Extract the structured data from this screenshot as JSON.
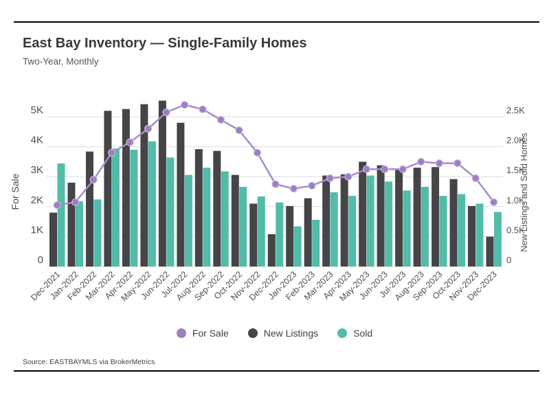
{
  "header": {
    "title": "East Bay Inventory — Single-Family Homes",
    "subtitle": "Two-Year, Monthly"
  },
  "source": "Source:  EASTBAYMLS via BrokerMetrics",
  "colors": {
    "for_sale": "#9d7fc1",
    "for_sale_line": "#a38dc7",
    "for_sale_dot_edge": "#c9b8de",
    "new_listings": "#454547",
    "sold": "#53bca9",
    "gridline": "#dcdcdc",
    "tick_text": "#4d4d4d"
  },
  "legend": [
    {
      "label": "For Sale",
      "color": "#9d7fc1"
    },
    {
      "label": "New Listings",
      "color": "#454547"
    },
    {
      "label": "Sold",
      "color": "#53bca9"
    }
  ],
  "chart_data": {
    "type": "combo-bar-line",
    "grid": true,
    "categories": [
      "Dec-2021",
      "Jan-2022",
      "Feb-2022",
      "Mar-2022",
      "Apr-2022",
      "May-2022",
      "Jun-2022",
      "Jul-2022",
      "Aug-2022",
      "Sep-2022",
      "Oct-2022",
      "Nov-2022",
      "Dec-2022",
      "Jan-2023",
      "Feb-2023",
      "Mar-2023",
      "Apr-2023",
      "May-2023",
      "Jun-2023",
      "Jul-2023",
      "Aug-2023",
      "Sep-2023",
      "Oct-2023",
      "Nov-2023",
      "Dec-2023"
    ],
    "series": [
      {
        "name": "For Sale",
        "type": "line",
        "axis": "left",
        "values": [
          2050,
          2150,
          2900,
          3800,
          4150,
          4600,
          5150,
          5400,
          5250,
          4900,
          4550,
          3800,
          2750,
          2600,
          2700,
          2950,
          3000,
          3250,
          3250,
          3250,
          3500,
          3450,
          3450,
          2950,
          2150
        ]
      },
      {
        "name": "New Listings",
        "type": "bar",
        "axis": "right",
        "values": [
          900,
          1400,
          1920,
          2600,
          2630,
          2710,
          2770,
          2400,
          1960,
          1930,
          1530,
          1050,
          540,
          1010,
          1140,
          1520,
          1540,
          1750,
          1690,
          1610,
          1650,
          1660,
          1460,
          1010,
          500
        ]
      },
      {
        "name": "Sold",
        "type": "bar",
        "axis": "right",
        "values": [
          1720,
          1090,
          1120,
          1970,
          1950,
          2090,
          1820,
          1530,
          1650,
          1590,
          1330,
          1170,
          1070,
          670,
          780,
          1240,
          1180,
          1520,
          1420,
          1270,
          1330,
          1180,
          1210,
          1050,
          910
        ]
      }
    ],
    "left_axis": {
      "label": "For Sale",
      "range": [
        0,
        5000
      ],
      "ticks": [
        "0",
        "1K",
        "2K",
        "3K",
        "4K",
        "5K"
      ]
    },
    "right_axis": {
      "label": "New Listings and Sold Homes",
      "range": [
        0,
        2500
      ],
      "ticks": [
        "0",
        "0.5K",
        "1.0K",
        "1.5K",
        "2.0K",
        "2.5K"
      ]
    },
    "legend_position": "bottom"
  }
}
